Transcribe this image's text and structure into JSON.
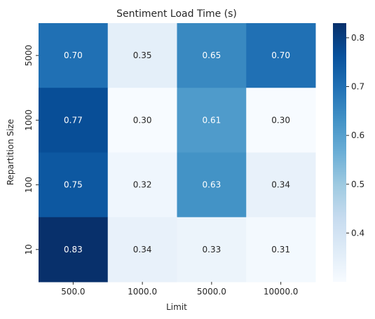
{
  "chart_data": {
    "type": "heatmap",
    "title": "Sentiment Load Time (s)",
    "xlabel": "Limit",
    "ylabel": "Repartition Size",
    "x_categories": [
      "500.0",
      "1000.0",
      "5000.0",
      "10000.0"
    ],
    "y_categories": [
      "5000",
      "1000",
      "100",
      "10"
    ],
    "values": [
      [
        0.7,
        0.35,
        0.65,
        0.7
      ],
      [
        0.77,
        0.3,
        0.61,
        0.3
      ],
      [
        0.75,
        0.32,
        0.63,
        0.34
      ],
      [
        0.83,
        0.34,
        0.33,
        0.31
      ]
    ],
    "value_labels": [
      [
        "0.70",
        "0.35",
        "0.65",
        "0.70"
      ],
      [
        "0.77",
        "0.30",
        "0.61",
        "0.30"
      ],
      [
        "0.75",
        "0.32",
        "0.63",
        "0.34"
      ],
      [
        "0.83",
        "0.34",
        "0.33",
        "0.31"
      ]
    ],
    "colormap": "Blues",
    "colorbar": {
      "range": [
        0.3,
        0.83
      ],
      "ticks": [
        0.4,
        0.5,
        0.6,
        0.7,
        0.8
      ],
      "tick_labels": [
        "0.4",
        "0.5",
        "0.6",
        "0.7",
        "0.8"
      ]
    },
    "grid": false,
    "legend": "colorbar-right"
  }
}
